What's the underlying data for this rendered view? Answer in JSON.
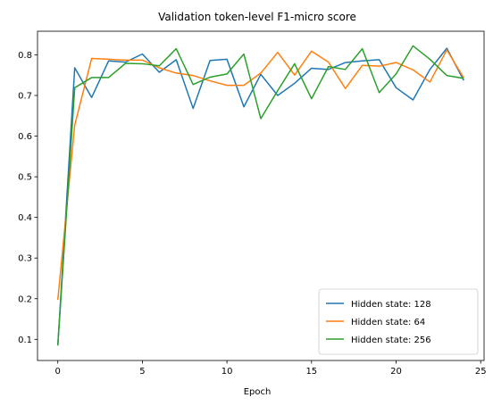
{
  "chart_data": {
    "type": "line",
    "title": "Validation token-level F1-micro score",
    "xlabel": "Epoch",
    "ylabel": "",
    "xlim": [
      -1.2,
      25.2
    ],
    "ylim": [
      0.048,
      0.858
    ],
    "xticks": [
      0,
      5,
      10,
      15,
      20,
      25
    ],
    "yticks": [
      0.1,
      0.2,
      0.3,
      0.4,
      0.5,
      0.6,
      0.7,
      0.8
    ],
    "grid": false,
    "legend_position": "bottom-right",
    "x": [
      0,
      1,
      2,
      3,
      4,
      5,
      6,
      7,
      8,
      9,
      10,
      11,
      12,
      13,
      14,
      15,
      16,
      17,
      18,
      19,
      20,
      21,
      22,
      23,
      24
    ],
    "series": [
      {
        "name": "Hidden state: 128",
        "color": "#1f77b4",
        "values": [
          0.085,
          0.768,
          0.695,
          0.785,
          0.782,
          0.802,
          0.757,
          0.788,
          0.668,
          0.786,
          0.789,
          0.672,
          0.752,
          0.7,
          0.73,
          0.767,
          0.764,
          0.781,
          0.785,
          0.788,
          0.719,
          0.689,
          0.764,
          0.816,
          0.737
        ]
      },
      {
        "name": "Hidden state: 64",
        "color": "#ff7f0e",
        "values": [
          0.197,
          0.627,
          0.791,
          0.789,
          0.787,
          0.787,
          0.768,
          0.755,
          0.749,
          0.736,
          0.725,
          0.725,
          0.755,
          0.806,
          0.75,
          0.809,
          0.782,
          0.717,
          0.774,
          0.772,
          0.781,
          0.763,
          0.733,
          0.812,
          0.743
        ]
      },
      {
        "name": "Hidden state: 256",
        "color": "#2ca02c",
        "values": [
          0.085,
          0.719,
          0.744,
          0.744,
          0.779,
          0.778,
          0.773,
          0.815,
          0.727,
          0.745,
          0.753,
          0.802,
          0.643,
          0.712,
          0.778,
          0.692,
          0.771,
          0.764,
          0.815,
          0.707,
          0.753,
          0.822,
          0.789,
          0.749,
          0.742
        ]
      }
    ]
  }
}
